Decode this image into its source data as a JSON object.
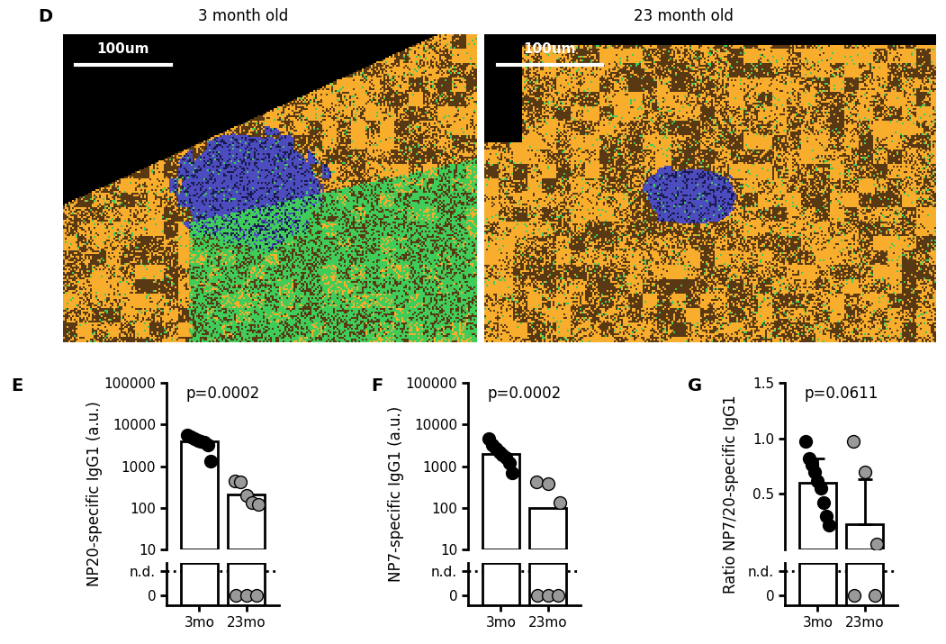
{
  "panel_d": {
    "label": "D",
    "images": [
      {
        "title": "3 month old",
        "scale_bar": "100um"
      },
      {
        "title": "23 month old",
        "scale_bar": "100um"
      }
    ]
  },
  "chart_data": [
    {
      "type": "bar",
      "panel": "E",
      "annotation": "p=0.0002",
      "y_label": "NP20-specific IgG1 (a.u.)",
      "categories": [
        "3mo",
        "23mo"
      ],
      "values": [
        4000,
        210
      ],
      "colors": [
        "#ffffff",
        "#ffffff"
      ],
      "points": [
        [
          5500,
          5000,
          4600,
          4200,
          4000,
          3700,
          3200,
          1300
        ],
        [
          450,
          420,
          200,
          130,
          120,
          0,
          0,
          0
        ]
      ],
      "point_colors": [
        "#000000",
        "#999999"
      ],
      "log": "y",
      "ylim": [
        10,
        100000
      ],
      "yticks": [
        10,
        100,
        1000,
        10000,
        100000
      ],
      "nd_ylim": [
        -0.3,
        1
      ],
      "nd_yticks": [
        0,
        {
          "value": 0.75,
          "label": "n.d."
        }
      ]
    },
    {
      "type": "bar",
      "panel": "F",
      "annotation": "p=0.0002",
      "y_label": "NP7-specific IgG1 (a.u.)",
      "categories": [
        "3mo",
        "23mo"
      ],
      "values": [
        2000,
        100
      ],
      "colors": [
        "#ffffff",
        "#ffffff"
      ],
      "points": [
        [
          4500,
          3200,
          2600,
          2200,
          1900,
          1600,
          1200,
          700
        ],
        [
          420,
          380,
          130,
          0,
          0,
          0
        ]
      ],
      "point_colors": [
        "#000000",
        "#999999"
      ],
      "log": "y",
      "ylim": [
        10,
        100000
      ],
      "yticks": [
        10,
        100,
        1000,
        10000,
        100000
      ],
      "nd_ylim": [
        -0.3,
        1
      ],
      "nd_yticks": [
        0,
        {
          "value": 0.75,
          "label": "n.d."
        }
      ]
    },
    {
      "type": "bar",
      "panel": "G",
      "annotation": "p=0.0611",
      "y_label": "Ratio NP7/20-specific IgG1",
      "categories": [
        "3mo",
        "23mo"
      ],
      "values": [
        0.6,
        0.23
      ],
      "errors": [
        0.22,
        0.4
      ],
      "colors": [
        "#ffffff",
        "#ffffff"
      ],
      "points": [
        [
          0.97,
          0.82,
          0.76,
          0.7,
          0.62,
          0.55,
          0.42,
          0.3,
          0.22
        ],
        [
          0.97,
          0.7,
          0.05,
          0,
          0
        ]
      ],
      "point_colors": [
        "#000000",
        "#999999"
      ],
      "ylim": [
        0,
        1.5
      ],
      "yticks": [
        0.5,
        {
          "value": 1.0,
          "label": "1.0"
        },
        1.5
      ],
      "nd_ylim": [
        -0.3,
        1
      ],
      "nd_yticks": [
        0,
        {
          "value": 0.75,
          "label": "n.d."
        }
      ]
    }
  ]
}
